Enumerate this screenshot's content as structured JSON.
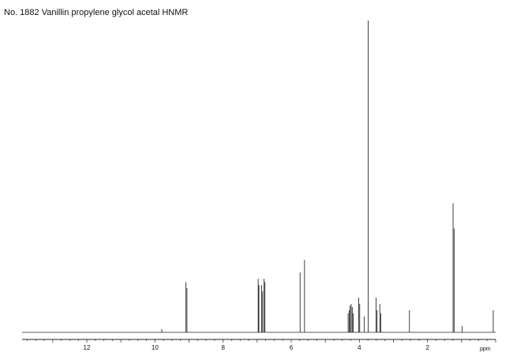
{
  "chart_data": {
    "type": "line",
    "title": "No. 1882 Vanillin propylene glycol acetal HNMR",
    "xlabel": "ppm",
    "ylabel": "",
    "xlim": [
      13.9,
      0.0
    ],
    "ylim": [
      0,
      1.0
    ],
    "grid": false,
    "major_ticks": [
      12,
      10,
      8,
      6,
      4,
      2
    ],
    "tick_labels": [
      "12",
      "10",
      "8",
      "6",
      "4",
      "2"
    ],
    "minor_tick_step": 0.25,
    "peaks": [
      {
        "ppm": 9.8,
        "height": 0.01
      },
      {
        "ppm": 9.09,
        "height": 0.16
      },
      {
        "ppm": 9.06,
        "height": 0.14
      },
      {
        "ppm": 6.97,
        "height": 0.17
      },
      {
        "ppm": 6.95,
        "height": 0.15
      },
      {
        "ppm": 6.87,
        "height": 0.15
      },
      {
        "ppm": 6.84,
        "height": 0.13
      },
      {
        "ppm": 6.8,
        "height": 0.17
      },
      {
        "ppm": 6.77,
        "height": 0.16
      },
      {
        "ppm": 5.74,
        "height": 0.19
      },
      {
        "ppm": 5.61,
        "height": 0.23
      },
      {
        "ppm": 4.33,
        "height": 0.06
      },
      {
        "ppm": 4.3,
        "height": 0.07
      },
      {
        "ppm": 4.27,
        "height": 0.085
      },
      {
        "ppm": 4.24,
        "height": 0.09
      },
      {
        "ppm": 4.21,
        "height": 0.08
      },
      {
        "ppm": 4.18,
        "height": 0.06
      },
      {
        "ppm": 4.02,
        "height": 0.11
      },
      {
        "ppm": 3.99,
        "height": 0.09
      },
      {
        "ppm": 3.86,
        "height": 0.05
      },
      {
        "ppm": 3.74,
        "height": 0.99
      },
      {
        "ppm": 3.51,
        "height": 0.11
      },
      {
        "ppm": 3.48,
        "height": 0.07
      },
      {
        "ppm": 3.4,
        "height": 0.09
      },
      {
        "ppm": 3.37,
        "height": 0.06
      },
      {
        "ppm": 2.53,
        "height": 0.07
      },
      {
        "ppm": 1.25,
        "height": 0.41
      },
      {
        "ppm": 1.22,
        "height": 0.33
      },
      {
        "ppm": 0.98,
        "height": 0.02
      },
      {
        "ppm": 0.07,
        "height": 0.07
      }
    ]
  }
}
